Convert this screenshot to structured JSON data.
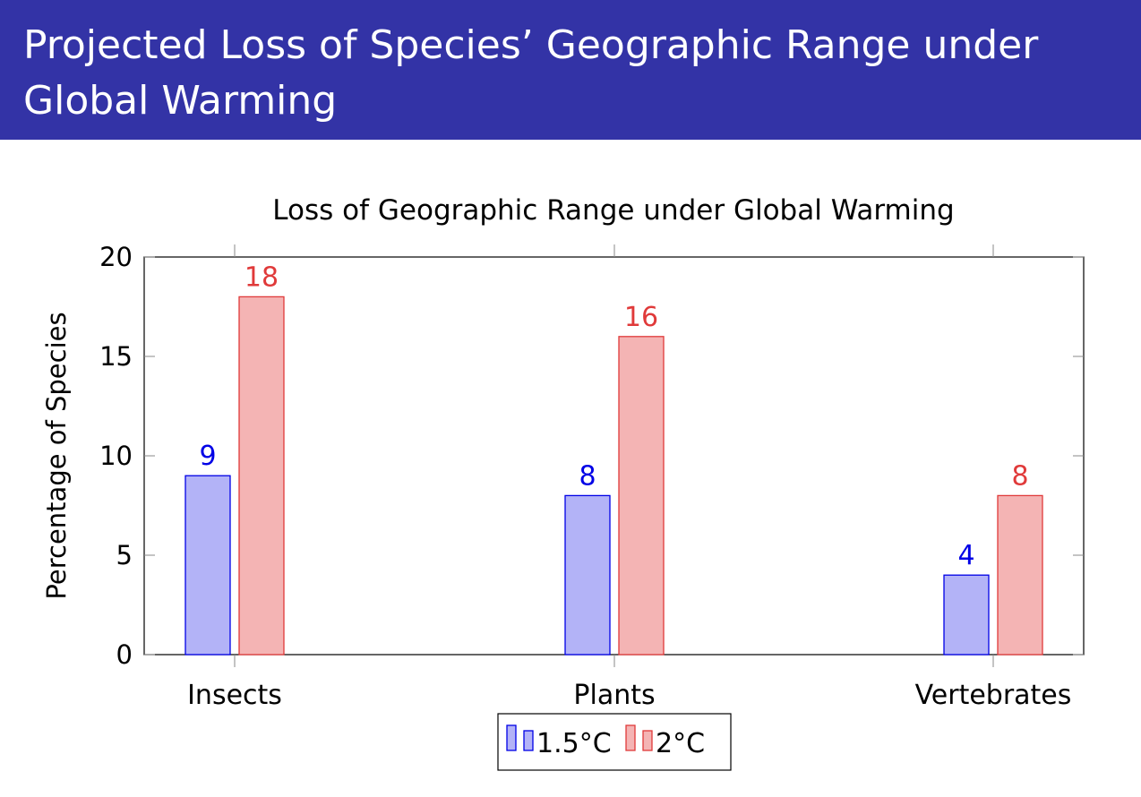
{
  "slide": {
    "title": "Projected Loss of Species’ Geographic Range under Global Warming"
  },
  "colors": {
    "title_bar": "#3333a6",
    "series_1_fill": "#b3b3f7",
    "series_1_stroke": "#0000e6",
    "series_2_fill": "#f4b4b4",
    "series_2_stroke": "#e03a3a"
  },
  "chart_data": {
    "type": "bar",
    "title": "Loss of Geographic Range under Global Warming",
    "xlabel": "",
    "ylabel": "Percentage of Species",
    "categories": [
      "Insects",
      "Plants",
      "Vertebrates"
    ],
    "series": [
      {
        "name": "1.5°C",
        "values": [
          9,
          8,
          4
        ],
        "color": "#0000e6",
        "fill": "#b3b3f7"
      },
      {
        "name": "2°C",
        "values": [
          18,
          16,
          8
        ],
        "color": "#e03a3a",
        "fill": "#f4b4b4"
      }
    ],
    "ylim": [
      0,
      20
    ],
    "yticks": [
      0,
      5,
      10,
      15,
      20
    ],
    "data_labels": true,
    "grid": false,
    "legend_position": "bottom-center"
  }
}
